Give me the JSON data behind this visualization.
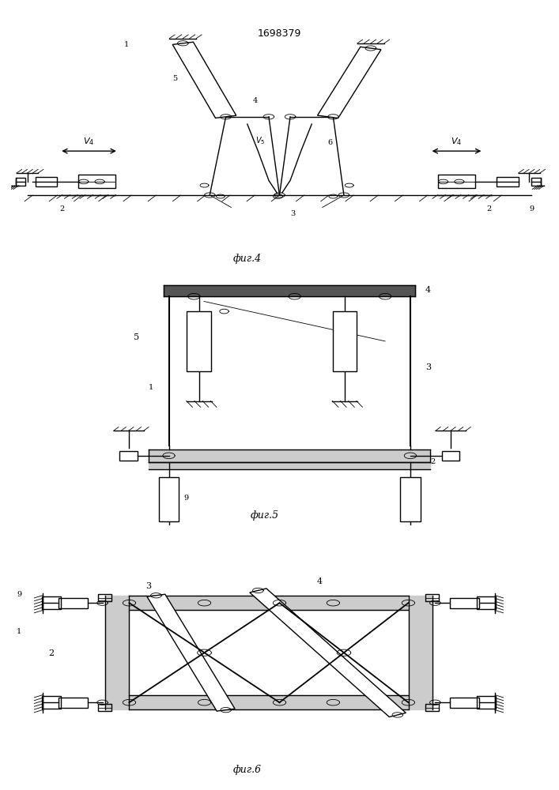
{
  "title": "1698379",
  "fig4_label": "фиг.4",
  "fig5_label": "фиг.5",
  "fig6_label": "фиг.6",
  "bg_color": "#ffffff",
  "line_color": "#000000",
  "line_width": 1.0,
  "thin_lw": 0.6
}
